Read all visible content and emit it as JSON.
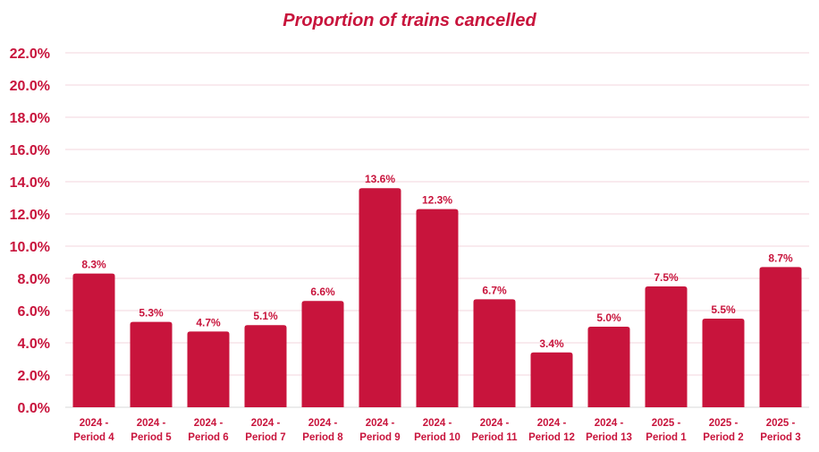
{
  "chart_data": {
    "type": "bar",
    "title": "Proportion of trains cancelled",
    "xlabel": "",
    "ylabel": "",
    "ylim": [
      0,
      22
    ],
    "yticks": [
      "0.0%",
      "2.0%",
      "4.0%",
      "6.0%",
      "8.0%",
      "10.0%",
      "12.0%",
      "14.0%",
      "16.0%",
      "18.0%",
      "20.0%",
      "22.0%"
    ],
    "ytick_values": [
      0,
      2,
      4,
      6,
      8,
      10,
      12,
      14,
      16,
      18,
      20,
      22
    ],
    "categories": [
      [
        "2024 -",
        "Period 4"
      ],
      [
        "2024 -",
        "Period 5"
      ],
      [
        "2024 -",
        "Period 6"
      ],
      [
        "2024 -",
        "Period 7"
      ],
      [
        "2024 -",
        "Period 8"
      ],
      [
        "2024 -",
        "Period 9"
      ],
      [
        "2024 -",
        "Period 10"
      ],
      [
        "2024 -",
        "Period 11"
      ],
      [
        "2024 -",
        "Period 12"
      ],
      [
        "2024 -",
        "Period 13"
      ],
      [
        "2025 -",
        "Period 1"
      ],
      [
        "2025 -",
        "Period 2"
      ],
      [
        "2025 -",
        "Period 3"
      ]
    ],
    "values": [
      8.3,
      5.3,
      4.7,
      5.1,
      6.6,
      13.6,
      12.3,
      6.7,
      3.4,
      5.0,
      7.5,
      5.5,
      8.7
    ],
    "data_labels": [
      "8.3%",
      "5.3%",
      "4.7%",
      "5.1%",
      "6.6%",
      "13.6%",
      "12.3%",
      "6.7%",
      "3.4%",
      "5.0%",
      "7.5%",
      "5.5%",
      "8.7%"
    ],
    "grid": true,
    "legend": "none",
    "colors": {
      "bar": "#c8143c",
      "text": "#c8143c",
      "grid": "#f3d6dc"
    }
  }
}
